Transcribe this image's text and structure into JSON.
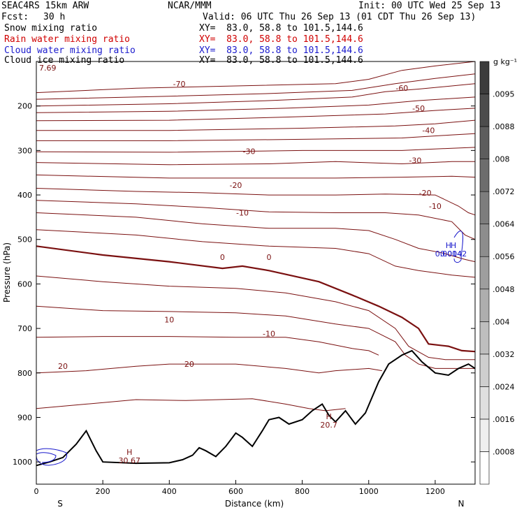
{
  "header": {
    "model": "SEAC4RS 15km ARW",
    "org": "NCAR/MMM",
    "init": "Init: 00 UTC Wed 25 Sep 13",
    "fcst_label": "Fcst:",
    "fcst_value": "30 h",
    "valid": "Valid: 06 UTC Thu 26 Sep 13 (01 CDT Thu 26 Sep 13)"
  },
  "fields": [
    {
      "name": "Snow mixing ratio",
      "xy": "XY=  83.0, 58.8 to 101.5,144.6",
      "color": "#000000"
    },
    {
      "name": "Rain water mixing ratio",
      "xy": "XY=  83.0, 58.8 to 101.5,144.6",
      "color": "#d00000"
    },
    {
      "name": "Cloud water mixing ratio",
      "xy": "XY=  83.0, 58.8 to 101.5,144.6",
      "color": "#1a1acc"
    },
    {
      "name": "Cloud ice mixing ratio",
      "xy": "XY=  83.0, 58.8 to 101.5,144.6",
      "color": "#000000"
    }
  ],
  "colorbar": {
    "unit": "g kg⁻¹",
    "levels": [
      ".0008",
      ".0016",
      ".0024",
      ".0032",
      ".004",
      ".0048",
      ".0056",
      ".0064",
      ".0072",
      ".008",
      ".0088",
      ".0095"
    ]
  },
  "chart_data": {
    "type": "contour",
    "xlabel": "Distance (km)",
    "ylabel": "Pressure (hPa)",
    "xlim": [
      0,
      1320
    ],
    "ylim": [
      1050,
      100
    ],
    "x_ticks": [
      "0",
      "200",
      "400",
      "600",
      "800",
      "1000",
      "1200"
    ],
    "y_ticks": [
      "200",
      "300",
      "400",
      "500",
      "600",
      "700",
      "800",
      "900",
      "1000"
    ],
    "y_tick_values": [
      200,
      300,
      400,
      500,
      600,
      700,
      800,
      900,
      1000
    ],
    "x_tick_values": [
      0,
      200,
      400,
      600,
      800,
      1000,
      1200
    ],
    "endpoint_labels": {
      "left": "S",
      "right": "N"
    },
    "top_left_value": "7.69",
    "temperature_contour_labels": [
      "-70",
      "-60",
      "-50",
      "-40",
      "-30",
      "-30",
      "-20",
      "-20",
      "-10",
      "-10",
      "0",
      "0",
      "10",
      "-10",
      "20",
      "20"
    ],
    "extrema_labels": [
      {
        "label": "H",
        "value": "30.67",
        "x": 280,
        "p": 1000
      },
      {
        "label": "H",
        "value": "20.7",
        "x": 880,
        "p": 920
      },
      {
        "label": "H",
        "value": "0.0014",
        "x": 1240,
        "p": 535
      },
      {
        "label": "H",
        "value": "0.0042",
        "x": 1255,
        "p": 535
      }
    ],
    "isotherms": [
      {
        "temp": -70,
        "points": [
          [
            0,
            170
          ],
          [
            300,
            160
          ],
          [
            600,
            155
          ],
          [
            900,
            150
          ],
          [
            1000,
            140
          ],
          [
            1100,
            120
          ],
          [
            1200,
            110
          ],
          [
            1320,
            100
          ]
        ]
      },
      {
        "temp": -65,
        "points": [
          [
            0,
            185
          ],
          [
            400,
            178
          ],
          [
            700,
            172
          ],
          [
            950,
            165
          ],
          [
            1080,
            150
          ],
          [
            1200,
            138
          ],
          [
            1320,
            128
          ]
        ]
      },
      {
        "temp": -60,
        "points": [
          [
            0,
            200
          ],
          [
            400,
            195
          ],
          [
            700,
            188
          ],
          [
            950,
            180
          ],
          [
            1050,
            168
          ],
          [
            1150,
            162
          ],
          [
            1320,
            150
          ]
        ]
      },
      {
        "temp": -55,
        "points": [
          [
            0,
            215
          ],
          [
            400,
            212
          ],
          [
            750,
            205
          ],
          [
            1000,
            198
          ],
          [
            1150,
            188
          ],
          [
            1320,
            180
          ]
        ]
      },
      {
        "temp": -50,
        "points": [
          [
            0,
            233
          ],
          [
            400,
            232
          ],
          [
            750,
            225
          ],
          [
            1050,
            218
          ],
          [
            1200,
            210
          ],
          [
            1320,
            205
          ]
        ]
      },
      {
        "temp": -45,
        "points": [
          [
            0,
            255
          ],
          [
            400,
            255
          ],
          [
            800,
            250
          ],
          [
            1080,
            245
          ],
          [
            1200,
            240
          ],
          [
            1320,
            232
          ]
        ]
      },
      {
        "temp": -40,
        "points": [
          [
            0,
            278
          ],
          [
            400,
            278
          ],
          [
            800,
            275
          ],
          [
            1100,
            272
          ],
          [
            1250,
            265
          ],
          [
            1320,
            262
          ]
        ]
      },
      {
        "temp": -35,
        "points": [
          [
            0,
            303
          ],
          [
            400,
            304
          ],
          [
            800,
            300
          ],
          [
            1100,
            300
          ],
          [
            1250,
            295
          ],
          [
            1320,
            293
          ]
        ]
      },
      {
        "temp": -30,
        "points": [
          [
            0,
            327
          ],
          [
            400,
            332
          ],
          [
            700,
            330
          ],
          [
            900,
            325
          ],
          [
            1100,
            330
          ],
          [
            1250,
            325
          ],
          [
            1320,
            325
          ]
        ]
      },
      {
        "temp": -25,
        "points": [
          [
            0,
            355
          ],
          [
            400,
            362
          ],
          [
            700,
            362
          ],
          [
            900,
            362
          ],
          [
            1100,
            360
          ],
          [
            1250,
            358
          ],
          [
            1320,
            360
          ]
        ]
      },
      {
        "temp": -20,
        "points": [
          [
            0,
            385
          ],
          [
            300,
            392
          ],
          [
            500,
            395
          ],
          [
            700,
            400
          ],
          [
            900,
            400
          ],
          [
            1050,
            398
          ],
          [
            1200,
            400
          ],
          [
            1270,
            425
          ],
          [
            1300,
            440
          ],
          [
            1320,
            445
          ]
        ]
      },
      {
        "temp": -15,
        "points": [
          [
            0,
            412
          ],
          [
            300,
            420
          ],
          [
            500,
            428
          ],
          [
            700,
            438
          ],
          [
            900,
            440
          ],
          [
            1050,
            440
          ],
          [
            1150,
            445
          ],
          [
            1250,
            460
          ],
          [
            1290,
            490
          ],
          [
            1320,
            500
          ]
        ]
      },
      {
        "temp": -10,
        "points": [
          [
            0,
            440
          ],
          [
            300,
            450
          ],
          [
            500,
            465
          ],
          [
            700,
            475
          ],
          [
            900,
            475
          ],
          [
            1000,
            480
          ],
          [
            1080,
            500
          ],
          [
            1150,
            520
          ],
          [
            1220,
            530
          ],
          [
            1290,
            545
          ],
          [
            1320,
            550
          ]
        ]
      },
      {
        "temp": -5,
        "points": [
          [
            0,
            478
          ],
          [
            300,
            490
          ],
          [
            500,
            505
          ],
          [
            700,
            515
          ],
          [
            900,
            520
          ],
          [
            1000,
            532
          ],
          [
            1080,
            560
          ],
          [
            1150,
            570
          ],
          [
            1250,
            580
          ],
          [
            1320,
            585
          ]
        ]
      },
      {
        "temp": 0,
        "bold": true,
        "points": [
          [
            0,
            515
          ],
          [
            200,
            535
          ],
          [
            400,
            550
          ],
          [
            560,
            565
          ],
          [
            620,
            560
          ],
          [
            700,
            570
          ],
          [
            850,
            595
          ],
          [
            950,
            625
          ],
          [
            1030,
            650
          ],
          [
            1100,
            675
          ],
          [
            1150,
            700
          ],
          [
            1180,
            735
          ],
          [
            1240,
            740
          ],
          [
            1280,
            750
          ],
          [
            1320,
            752
          ]
        ]
      },
      {
        "temp": 5,
        "points": [
          [
            0,
            582
          ],
          [
            200,
            595
          ],
          [
            400,
            605
          ],
          [
            600,
            610
          ],
          [
            750,
            620
          ],
          [
            900,
            640
          ],
          [
            1000,
            660
          ],
          [
            1080,
            700
          ],
          [
            1120,
            740
          ],
          [
            1180,
            765
          ],
          [
            1230,
            770
          ],
          [
            1300,
            770
          ],
          [
            1320,
            770
          ]
        ]
      },
      {
        "temp": 10,
        "points": [
          [
            0,
            650
          ],
          [
            200,
            660
          ],
          [
            400,
            662
          ],
          [
            600,
            665
          ],
          [
            750,
            672
          ],
          [
            900,
            690
          ],
          [
            1000,
            700
          ],
          [
            1080,
            730
          ],
          [
            1110,
            760
          ],
          [
            1150,
            780
          ],
          [
            1200,
            790
          ],
          [
            1320,
            790
          ]
        ]
      },
      {
        "temp": 15,
        "points": [
          [
            0,
            720
          ],
          [
            200,
            718
          ],
          [
            400,
            718
          ],
          [
            600,
            720
          ],
          [
            750,
            720
          ],
          [
            850,
            730
          ],
          [
            950,
            745
          ],
          [
            1000,
            750
          ],
          [
            1030,
            760
          ]
        ]
      },
      {
        "temp": 20,
        "points": [
          [
            0,
            800
          ],
          [
            150,
            795
          ],
          [
            300,
            785
          ],
          [
            400,
            780
          ],
          [
            500,
            780
          ],
          [
            600,
            780
          ],
          [
            750,
            790
          ],
          [
            850,
            800
          ],
          [
            900,
            795
          ],
          [
            1000,
            790
          ],
          [
            1040,
            795
          ]
        ]
      },
      {
        "temp": 25,
        "points": [
          [
            0,
            880
          ],
          [
            150,
            870
          ],
          [
            300,
            860
          ],
          [
            450,
            862
          ],
          [
            550,
            860
          ],
          [
            650,
            858
          ],
          [
            750,
            870
          ],
          [
            820,
            880
          ],
          [
            870,
            885
          ],
          [
            930,
            880
          ]
        ]
      }
    ],
    "terrain": [
      [
        0,
        1008
      ],
      [
        40,
        1000
      ],
      [
        80,
        990
      ],
      [
        120,
        960
      ],
      [
        150,
        930
      ],
      [
        180,
        975
      ],
      [
        200,
        1000
      ],
      [
        300,
        1003
      ],
      [
        400,
        1002
      ],
      [
        440,
        995
      ],
      [
        470,
        985
      ],
      [
        490,
        968
      ],
      [
        510,
        975
      ],
      [
        540,
        988
      ],
      [
        570,
        965
      ],
      [
        600,
        935
      ],
      [
        620,
        945
      ],
      [
        650,
        965
      ],
      [
        680,
        930
      ],
      [
        700,
        905
      ],
      [
        730,
        900
      ],
      [
        760,
        915
      ],
      [
        800,
        905
      ],
      [
        830,
        885
      ],
      [
        860,
        870
      ],
      [
        880,
        895
      ],
      [
        900,
        910
      ],
      [
        930,
        885
      ],
      [
        960,
        915
      ],
      [
        990,
        890
      ],
      [
        1030,
        820
      ],
      [
        1060,
        780
      ],
      [
        1100,
        760
      ],
      [
        1130,
        750
      ],
      [
        1160,
        775
      ],
      [
        1200,
        800
      ],
      [
        1240,
        805
      ],
      [
        1270,
        790
      ],
      [
        1300,
        780
      ],
      [
        1320,
        790
      ]
    ]
  }
}
